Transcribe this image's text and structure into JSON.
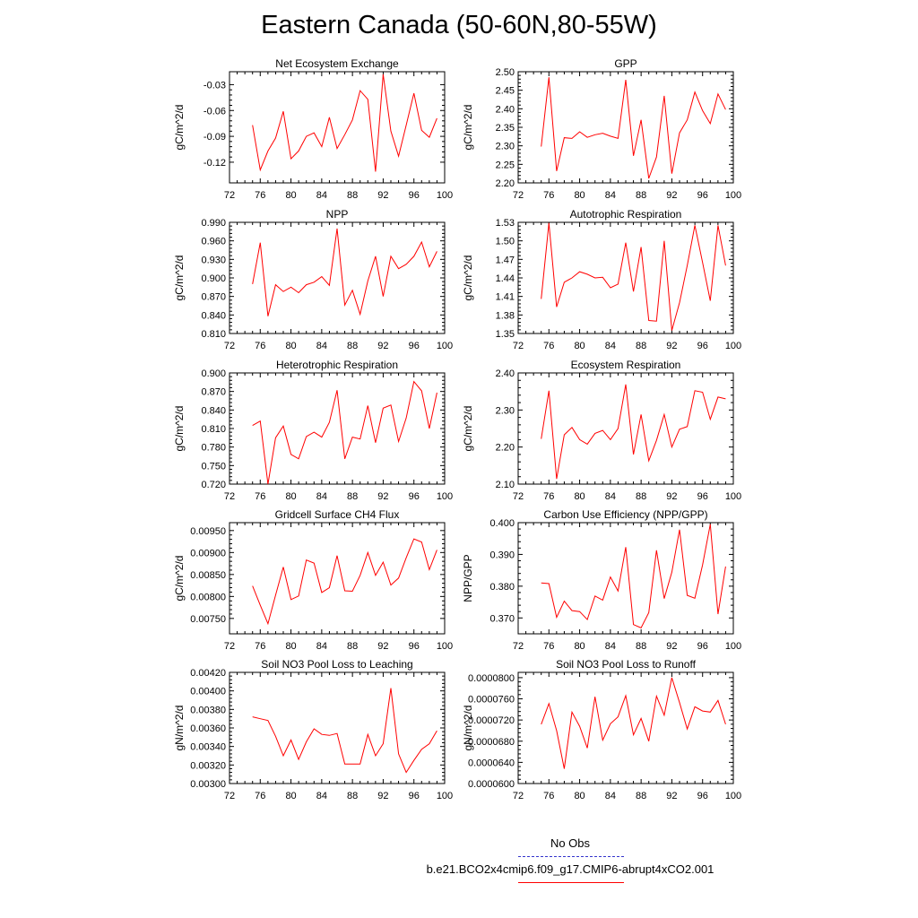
{
  "title": "Eastern Canada (50-60N,80-55W)",
  "colors": {
    "series": "#ff0000",
    "obs": "#3333cc",
    "axis": "#000000"
  },
  "legend": {
    "obs_label": "No Obs",
    "model_label": "b.e21.BCO2x4cmip6.f09_g17.CMIP6-abrupt4xCO2.001"
  },
  "chart_data": [
    {
      "type": "line",
      "title": "Net Ecosystem Exchange",
      "ylabel": "gC/m^2/d",
      "xlim": [
        72,
        100
      ],
      "xticks": [
        72,
        76,
        80,
        84,
        88,
        92,
        96,
        100
      ],
      "ylim": [
        -0.144,
        -0.015
      ],
      "yticks": [
        -0.03,
        -0.06,
        -0.09,
        -0.12
      ],
      "yticklabels": [
        "-0.03",
        "-0.06",
        "-0.09",
        "-0.12"
      ],
      "x": [
        75,
        76,
        77,
        78,
        79,
        80,
        81,
        82,
        83,
        84,
        85,
        86,
        87,
        88,
        89,
        90,
        91,
        92,
        93,
        94,
        95,
        96,
        97,
        98,
        99
      ],
      "values": [
        -0.077,
        -0.129,
        -0.107,
        -0.092,
        -0.061,
        -0.116,
        -0.107,
        -0.09,
        -0.086,
        -0.102,
        -0.068,
        -0.104,
        -0.088,
        -0.071,
        -0.037,
        -0.047,
        -0.131,
        -0.018,
        -0.084,
        -0.113,
        -0.077,
        -0.04,
        -0.083,
        -0.091,
        -0.069
      ]
    },
    {
      "type": "line",
      "title": "GPP",
      "ylabel": "gC/m^2/d",
      "xlim": [
        72,
        100
      ],
      "xticks": [
        72,
        76,
        80,
        84,
        88,
        92,
        96,
        100
      ],
      "ylim": [
        2.2,
        2.5
      ],
      "yticks": [
        2.2,
        2.25,
        2.3,
        2.35,
        2.4,
        2.45,
        2.5
      ],
      "yticklabels": [
        "2.20",
        "2.25",
        "2.30",
        "2.35",
        "2.40",
        "2.45",
        "2.50"
      ],
      "x": [
        75,
        76,
        77,
        78,
        79,
        80,
        81,
        82,
        83,
        84,
        85,
        86,
        87,
        88,
        89,
        90,
        91,
        92,
        93,
        94,
        95,
        96,
        97,
        98,
        99
      ],
      "values": [
        2.298,
        2.485,
        2.232,
        2.322,
        2.32,
        2.338,
        2.323,
        2.33,
        2.334,
        2.326,
        2.32,
        2.478,
        2.273,
        2.37,
        2.212,
        2.27,
        2.435,
        2.225,
        2.335,
        2.37,
        2.445,
        2.395,
        2.36,
        2.44,
        2.398
      ]
    },
    {
      "type": "line",
      "title": "NPP",
      "ylabel": "gC/m^2/d",
      "xlim": [
        72,
        100
      ],
      "xticks": [
        72,
        76,
        80,
        84,
        88,
        92,
        96,
        100
      ],
      "ylim": [
        0.81,
        0.99
      ],
      "yticks": [
        0.81,
        0.84,
        0.87,
        0.9,
        0.93,
        0.96,
        0.99
      ],
      "yticklabels": [
        "0.810",
        "0.840",
        "0.870",
        "0.900",
        "0.930",
        "0.960",
        "0.990"
      ],
      "x": [
        75,
        76,
        77,
        78,
        79,
        80,
        81,
        82,
        83,
        84,
        85,
        86,
        87,
        88,
        89,
        90,
        91,
        92,
        93,
        94,
        95,
        96,
        97,
        98,
        99
      ],
      "values": [
        0.89,
        0.957,
        0.838,
        0.889,
        0.878,
        0.885,
        0.876,
        0.889,
        0.893,
        0.902,
        0.888,
        0.98,
        0.856,
        0.88,
        0.841,
        0.895,
        0.935,
        0.87,
        0.935,
        0.915,
        0.922,
        0.935,
        0.958,
        0.918,
        0.943
      ]
    },
    {
      "type": "line",
      "title": "Autotrophic Respiration",
      "ylabel": "gC/m^2/d",
      "xlim": [
        72,
        100
      ],
      "xticks": [
        72,
        76,
        80,
        84,
        88,
        92,
        96,
        100
      ],
      "ylim": [
        1.35,
        1.53
      ],
      "yticks": [
        1.35,
        1.38,
        1.41,
        1.44,
        1.47,
        1.5,
        1.53
      ],
      "yticklabels": [
        "1.35",
        "1.38",
        "1.41",
        "1.44",
        "1.47",
        "1.50",
        "1.53"
      ],
      "x": [
        75,
        76,
        77,
        78,
        79,
        80,
        81,
        82,
        83,
        84,
        85,
        86,
        87,
        88,
        89,
        90,
        91,
        92,
        93,
        94,
        95,
        96,
        97,
        98,
        99
      ],
      "values": [
        1.406,
        1.529,
        1.393,
        1.433,
        1.44,
        1.45,
        1.446,
        1.44,
        1.441,
        1.424,
        1.43,
        1.497,
        1.418,
        1.49,
        1.371,
        1.37,
        1.5,
        1.355,
        1.4,
        1.46,
        1.525,
        1.465,
        1.403,
        1.525,
        1.46
      ]
    },
    {
      "type": "line",
      "title": "Heterotrophic Respiration",
      "ylabel": "gC/m^2/d",
      "xlim": [
        72,
        100
      ],
      "xticks": [
        72,
        76,
        80,
        84,
        88,
        92,
        96,
        100
      ],
      "ylim": [
        0.72,
        0.9
      ],
      "yticks": [
        0.72,
        0.75,
        0.78,
        0.81,
        0.84,
        0.87,
        0.9
      ],
      "yticklabels": [
        "0.720",
        "0.750",
        "0.780",
        "0.810",
        "0.840",
        "0.870",
        "0.900"
      ],
      "x": [
        75,
        76,
        77,
        78,
        79,
        80,
        81,
        82,
        83,
        84,
        85,
        86,
        87,
        88,
        89,
        90,
        91,
        92,
        93,
        94,
        95,
        96,
        97,
        98,
        99
      ],
      "values": [
        0.815,
        0.822,
        0.72,
        0.795,
        0.814,
        0.768,
        0.761,
        0.797,
        0.804,
        0.796,
        0.82,
        0.872,
        0.761,
        0.796,
        0.793,
        0.847,
        0.787,
        0.843,
        0.848,
        0.789,
        0.827,
        0.886,
        0.871,
        0.81,
        0.868
      ]
    },
    {
      "type": "line",
      "title": "Ecosystem Respiration",
      "ylabel": "gC/m^2/d",
      "xlim": [
        72,
        100
      ],
      "xticks": [
        72,
        76,
        80,
        84,
        88,
        92,
        96,
        100
      ],
      "ylim": [
        2.1,
        2.4
      ],
      "yticks": [
        2.1,
        2.2,
        2.3,
        2.4
      ],
      "yticklabels": [
        "2.10",
        "2.20",
        "2.30",
        "2.40"
      ],
      "x": [
        75,
        76,
        77,
        78,
        79,
        80,
        81,
        82,
        83,
        84,
        85,
        86,
        87,
        88,
        89,
        90,
        91,
        92,
        93,
        94,
        95,
        96,
        97,
        98,
        99
      ],
      "values": [
        2.222,
        2.352,
        2.114,
        2.233,
        2.253,
        2.22,
        2.208,
        2.237,
        2.245,
        2.22,
        2.25,
        2.369,
        2.18,
        2.288,
        2.163,
        2.218,
        2.288,
        2.2,
        2.248,
        2.255,
        2.352,
        2.348,
        2.275,
        2.335,
        2.33
      ]
    },
    {
      "type": "line",
      "title": "Gridcell Surface CH4 Flux",
      "ylabel": "gC/m^2/d",
      "xlim": [
        72,
        100
      ],
      "xticks": [
        72,
        76,
        80,
        84,
        88,
        92,
        96,
        100
      ],
      "ylim": [
        0.00715,
        0.00968
      ],
      "yticks": [
        0.0075,
        0.008,
        0.0085,
        0.009,
        0.0095
      ],
      "yticklabels": [
        "0.00750",
        "0.00800",
        "0.00850",
        "0.00900",
        "0.00950"
      ],
      "x": [
        75,
        76,
        77,
        78,
        79,
        80,
        81,
        82,
        83,
        84,
        85,
        86,
        87,
        88,
        89,
        90,
        91,
        92,
        93,
        94,
        95,
        96,
        97,
        98,
        99
      ],
      "values": [
        0.00824,
        0.0078,
        0.00738,
        0.00803,
        0.00867,
        0.00793,
        0.00801,
        0.00883,
        0.00876,
        0.00809,
        0.0082,
        0.00893,
        0.00813,
        0.00812,
        0.00848,
        0.009,
        0.00848,
        0.00878,
        0.00826,
        0.00842,
        0.00888,
        0.00931,
        0.00924,
        0.00861,
        0.00906
      ]
    },
    {
      "type": "line",
      "title": "Carbon Use Efficiency (NPP/GPP)",
      "ylabel": "NPP/GPP",
      "xlim": [
        72,
        100
      ],
      "xticks": [
        72,
        76,
        80,
        84,
        88,
        92,
        96,
        100
      ],
      "ylim": [
        0.365,
        0.4
      ],
      "yticks": [
        0.37,
        0.38,
        0.39,
        0.4
      ],
      "yticklabels": [
        "0.370",
        "0.380",
        "0.390",
        "0.400"
      ],
      "x": [
        75,
        76,
        77,
        78,
        79,
        80,
        81,
        82,
        83,
        84,
        85,
        86,
        87,
        88,
        89,
        90,
        91,
        92,
        93,
        94,
        95,
        96,
        97,
        98,
        99
      ],
      "values": [
        0.381,
        0.3808,
        0.3702,
        0.3753,
        0.3723,
        0.372,
        0.3695,
        0.3769,
        0.3756,
        0.3829,
        0.3785,
        0.3923,
        0.3679,
        0.3669,
        0.3717,
        0.3913,
        0.3761,
        0.3844,
        0.3978,
        0.3771,
        0.3762,
        0.3867,
        0.3995,
        0.3712,
        0.3862
      ]
    },
    {
      "type": "line",
      "title": "Soil NO3 Pool Loss to Leaching",
      "ylabel": "gN/m^2/d",
      "xlim": [
        72,
        100
      ],
      "xticks": [
        72,
        76,
        80,
        84,
        88,
        92,
        96,
        100
      ],
      "ylim": [
        0.003,
        0.0042
      ],
      "yticks": [
        0.003,
        0.0032,
        0.0034,
        0.0036,
        0.0038,
        0.004,
        0.0042
      ],
      "yticklabels": [
        "0.00300",
        "0.00320",
        "0.00340",
        "0.00360",
        "0.00380",
        "0.00400",
        "0.00420"
      ],
      "x": [
        75,
        76,
        77,
        78,
        79,
        80,
        81,
        82,
        83,
        84,
        85,
        86,
        87,
        88,
        89,
        90,
        91,
        92,
        93,
        94,
        95,
        96,
        97,
        98,
        99
      ],
      "values": [
        0.00372,
        0.0037,
        0.00368,
        0.00351,
        0.0033,
        0.00347,
        0.00326,
        0.00345,
        0.00359,
        0.00353,
        0.00352,
        0.00354,
        0.00321,
        0.00321,
        0.00321,
        0.00353,
        0.0033,
        0.00343,
        0.00403,
        0.00332,
        0.00312,
        0.00325,
        0.00337,
        0.00343,
        0.00357
      ]
    },
    {
      "type": "line",
      "title": "Soil NO3 Pool Loss to Runoff",
      "ylabel": "gN/m^2/d",
      "xlim": [
        72,
        100
      ],
      "xticks": [
        72,
        76,
        80,
        84,
        88,
        92,
        96,
        100
      ],
      "ylim": [
        6e-05,
        8.1e-05
      ],
      "yticks": [
        6e-05,
        6.4e-05,
        6.8e-05,
        7.2e-05,
        7.6e-05,
        8e-05
      ],
      "yticklabels": [
        "0.0000600",
        "0.0000640",
        "0.0000680",
        "0.0000720",
        "0.0000760",
        "0.0000800"
      ],
      "x": [
        75,
        76,
        77,
        78,
        79,
        80,
        81,
        82,
        83,
        84,
        85,
        86,
        87,
        88,
        89,
        90,
        91,
        92,
        93,
        94,
        95,
        96,
        97,
        98,
        99
      ],
      "values": [
        7.12e-05,
        7.51e-05,
        7e-05,
        6.28e-05,
        7.35e-05,
        7.08e-05,
        6.67e-05,
        7.64e-05,
        6.82e-05,
        7.13e-05,
        7.26e-05,
        7.66e-05,
        6.92e-05,
        7.23e-05,
        6.8e-05,
        7.65e-05,
        7.29e-05,
        8e-05,
        7.53e-05,
        7.03e-05,
        7.45e-05,
        7.37e-05,
        7.35e-05,
        7.57e-05,
        7.12e-05
      ]
    }
  ]
}
